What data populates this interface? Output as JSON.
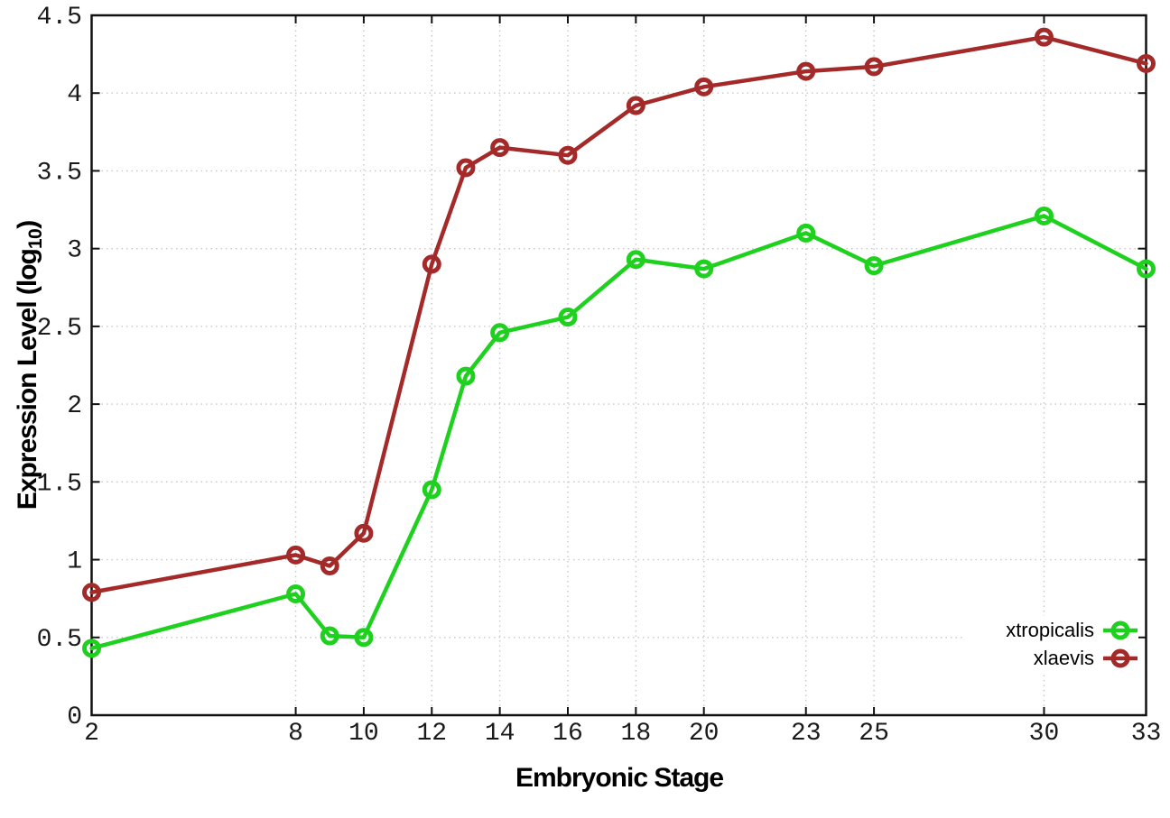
{
  "chart_data": {
    "type": "line",
    "title": "",
    "xlabel": "Embryonic Stage",
    "ylabel": "Expression Level (log10)",
    "ylabel_parts": {
      "pre": "Expression Level (log",
      "sub": "10",
      "post": ")"
    },
    "xlim": [
      2,
      33
    ],
    "ylim": [
      0,
      4.5
    ],
    "grid": true,
    "legend_position": "bottom-right",
    "x": [
      2,
      8,
      9,
      10,
      12,
      13,
      14,
      16,
      18,
      20,
      23,
      25,
      30,
      33
    ],
    "x_ticks": [
      2,
      8,
      10,
      12,
      14,
      16,
      18,
      20,
      23,
      25,
      30,
      33
    ],
    "x_tick_labels": [
      "2",
      "8",
      "10",
      "12",
      "14",
      "16",
      "18",
      "20",
      "23",
      "25",
      "30",
      "33"
    ],
    "y_ticks": [
      0,
      0.5,
      1,
      1.5,
      2,
      2.5,
      3,
      3.5,
      4,
      4.5
    ],
    "y_tick_labels": [
      "0",
      "0.5",
      "1",
      "1.5",
      "2",
      "2.5",
      "3",
      "3.5",
      "4",
      "4.5"
    ],
    "series": [
      {
        "name": "xtropicalis",
        "color": "#1ed11e",
        "marker": "open-circle",
        "values": [
          0.43,
          0.78,
          0.51,
          0.5,
          1.45,
          2.18,
          2.46,
          2.56,
          2.93,
          2.87,
          3.1,
          2.89,
          3.21,
          2.87
        ]
      },
      {
        "name": "xlaevis",
        "color": "#a42a2a",
        "marker": "open-circle",
        "values": [
          0.79,
          1.03,
          0.96,
          1.17,
          2.9,
          3.52,
          3.65,
          3.6,
          3.92,
          4.04,
          4.14,
          4.17,
          4.36,
          4.19
        ]
      }
    ],
    "grid_color": "#c8c8c8",
    "axis_color": "#111111"
  }
}
